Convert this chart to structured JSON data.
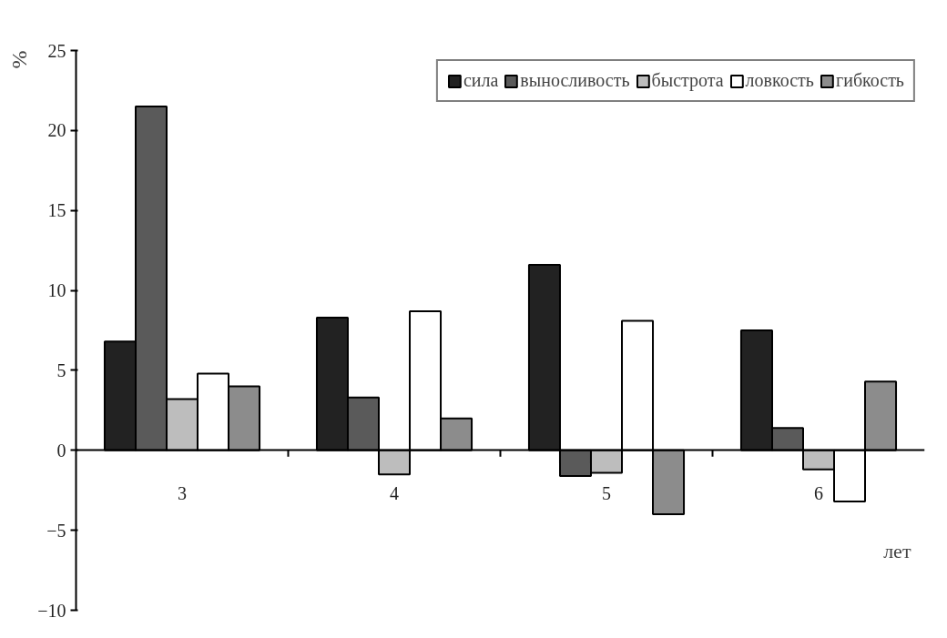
{
  "chart_data": {
    "type": "bar",
    "xlabel": "лет",
    "ylabel": "%",
    "categories": [
      "3",
      "4",
      "5",
      "6"
    ],
    "series": [
      {
        "name": "сила",
        "color": "#222222",
        "values": [
          6.8,
          8.3,
          11.6,
          7.5
        ]
      },
      {
        "name": "выносливость",
        "color": "#5a5a5a",
        "values": [
          21.5,
          3.3,
          -1.6,
          1.4
        ]
      },
      {
        "name": "быстрота",
        "color": "#bdbdbd",
        "values": [
          3.2,
          -1.5,
          -1.4,
          -1.2
        ]
      },
      {
        "name": "ловкость",
        "color": "#ffffff",
        "values": [
          4.8,
          8.7,
          8.1,
          -3.2
        ]
      },
      {
        "name": "гибкость",
        "color": "#8c8c8c",
        "values": [
          4.0,
          2.0,
          -4.0,
          4.3
        ]
      }
    ],
    "ylim": [
      -10,
      25
    ],
    "yticks": [
      -10,
      -5,
      0,
      5,
      10,
      15,
      20,
      25
    ],
    "grid": false,
    "legend": "top right"
  }
}
